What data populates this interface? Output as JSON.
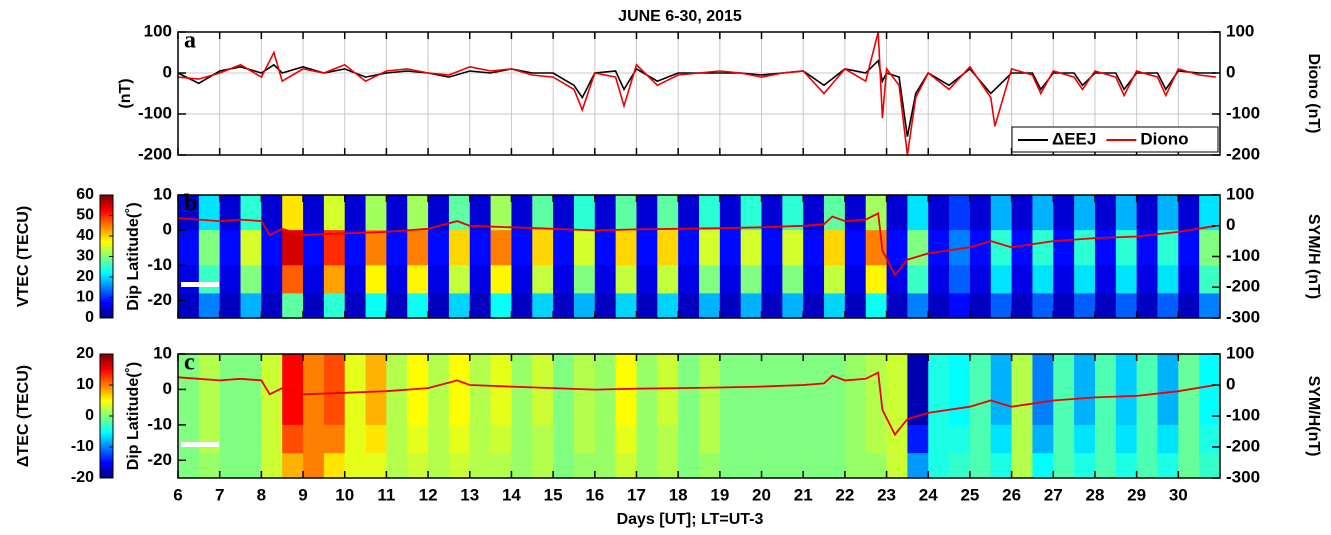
{
  "chart_data": [
    {
      "type": "line",
      "title": "JUNE 6-30, 2015",
      "panel_label": "a",
      "ylabel": "(nT)",
      "y2label": "Diono (nT)",
      "xlim": [
        6,
        31
      ],
      "ylim": [
        -200,
        100
      ],
      "yticks": [
        100,
        0,
        -100,
        -200
      ],
      "y2lim": [
        -200,
        100
      ],
      "y2ticks": [
        100,
        0,
        -100,
        -200
      ],
      "grid": true,
      "legend": "lower right",
      "x": [
        6,
        6.5,
        7,
        7.5,
        8,
        8.3,
        8.5,
        9,
        9.5,
        10,
        10.5,
        11,
        11.5,
        12,
        12.5,
        13,
        13.5,
        14,
        14.5,
        15,
        15.5,
        15.7,
        16,
        16.5,
        16.7,
        17,
        17.5,
        18,
        18.5,
        19,
        19.5,
        20,
        20.5,
        21,
        21.5,
        22,
        22.5,
        22.8,
        22.9,
        23,
        23.3,
        23.5,
        23.7,
        24,
        24.5,
        25,
        25.5,
        25.6,
        26,
        26.5,
        26.7,
        27,
        27.5,
        27.7,
        28,
        28.5,
        28.7,
        29,
        29.5,
        29.7,
        30,
        30.5,
        30.9
      ],
      "series": [
        {
          "name": "ΔEEJ",
          "color": "#000000",
          "values": [
            0,
            -25,
            5,
            15,
            0,
            20,
            0,
            15,
            0,
            10,
            -10,
            0,
            5,
            0,
            -10,
            5,
            0,
            10,
            0,
            0,
            -30,
            -60,
            0,
            5,
            -40,
            10,
            -20,
            0,
            0,
            0,
            0,
            -5,
            0,
            5,
            -30,
            10,
            0,
            30,
            -20,
            0,
            -10,
            -155,
            -50,
            0,
            -30,
            10,
            -50,
            -40,
            0,
            0,
            -40,
            0,
            0,
            -30,
            0,
            0,
            -40,
            0,
            0,
            -40,
            5,
            0,
            0
          ]
        },
        {
          "name": "Diono",
          "color": "#ee0000",
          "values": [
            -10,
            -15,
            0,
            20,
            -10,
            50,
            -20,
            10,
            0,
            20,
            -20,
            5,
            10,
            0,
            -5,
            15,
            5,
            10,
            -5,
            -10,
            -40,
            -90,
            0,
            -10,
            -80,
            20,
            -30,
            -5,
            0,
            5,
            0,
            -10,
            0,
            5,
            -50,
            10,
            -20,
            100,
            -110,
            10,
            -30,
            -200,
            -60,
            0,
            -40,
            15,
            -60,
            -130,
            10,
            -5,
            -50,
            5,
            -10,
            -40,
            5,
            -10,
            -55,
            5,
            -10,
            -55,
            10,
            -5,
            -10
          ]
        }
      ]
    },
    {
      "type": "heatmap",
      "panel_label": "b",
      "ylabel": "Dip Latitude(˚)",
      "y2label": "SYM/H (nT)",
      "xlim": [
        6,
        31
      ],
      "ylim": [
        -25,
        10
      ],
      "yticks": [
        10,
        0,
        -10,
        -20
      ],
      "y2lim": [
        -300,
        100
      ],
      "y2ticks": [
        100,
        0,
        -100,
        -200,
        -300
      ],
      "colormap": "jet",
      "colorbar": {
        "label": "VTEC (TECU)",
        "lim": [
          0,
          60
        ],
        "ticks": [
          60,
          50,
          40,
          30,
          20,
          10,
          0
        ]
      },
      "x_edges": [
        6,
        6.5,
        7,
        7.5,
        8,
        8.5,
        9,
        9.5,
        10,
        10.5,
        11,
        11.5,
        12,
        12.5,
        13,
        13.5,
        14,
        14.5,
        15,
        15.5,
        16,
        16.5,
        17,
        17.5,
        18,
        18.5,
        19,
        19.5,
        20,
        20.5,
        21,
        21.5,
        22,
        22.5,
        23,
        23.5,
        24,
        24.5,
        25,
        25.5,
        26,
        26.5,
        27,
        27.5,
        28,
        28.5,
        29,
        29.5,
        30,
        30.5,
        31
      ],
      "y_edges": [
        10,
        0,
        -10,
        -18,
        -25
      ],
      "z": [
        [
          5,
          21,
          5,
          25,
          5,
          39,
          5,
          35,
          5,
          32,
          5,
          32,
          5,
          28,
          5,
          32,
          5,
          28,
          5,
          25,
          5,
          28,
          5,
          28,
          5,
          25,
          5,
          25,
          5,
          25,
          5,
          28,
          5,
          32,
          5,
          21,
          5,
          11,
          5,
          18,
          5,
          18,
          5,
          18,
          5,
          18,
          5,
          18,
          5,
          21
        ],
        [
          8,
          30,
          8,
          35,
          8,
          55,
          8,
          50,
          8,
          45,
          8,
          45,
          8,
          40,
          8,
          45,
          8,
          40,
          8,
          35,
          8,
          40,
          8,
          40,
          8,
          35,
          8,
          35,
          8,
          35,
          8,
          40,
          8,
          45,
          8,
          30,
          8,
          15,
          8,
          25,
          8,
          25,
          8,
          25,
          8,
          25,
          8,
          25,
          8,
          30
        ],
        [
          6,
          26,
          6,
          30,
          6,
          47,
          6,
          43,
          6,
          38,
          6,
          38,
          6,
          34,
          6,
          38,
          6,
          34,
          6,
          30,
          6,
          34,
          6,
          34,
          6,
          30,
          6,
          30,
          6,
          30,
          6,
          34,
          6,
          38,
          6,
          26,
          6,
          13,
          6,
          21,
          6,
          21,
          6,
          21,
          6,
          21,
          6,
          21,
          6,
          26
        ],
        [
          4,
          15,
          4,
          18,
          4,
          28,
          4,
          25,
          4,
          23,
          4,
          23,
          4,
          20,
          4,
          23,
          4,
          20,
          4,
          18,
          4,
          20,
          4,
          20,
          4,
          18,
          4,
          18,
          4,
          18,
          4,
          20,
          4,
          23,
          4,
          15,
          4,
          8,
          4,
          13,
          4,
          13,
          4,
          13,
          4,
          13,
          4,
          13,
          4,
          15
        ]
      ],
      "series": [
        {
          "color": "#ee0000",
          "axis": "y2",
          "x": [
            6,
            6.5,
            7,
            7.5,
            8,
            8.2,
            8.5,
            9,
            10,
            11,
            12,
            12.7,
            13,
            14,
            15,
            16,
            17,
            18,
            19,
            20,
            21,
            21.5,
            21.7,
            22,
            22.5,
            22.8,
            22.9,
            23.2,
            23.5,
            24,
            25,
            25.5,
            26,
            27,
            28,
            29,
            30,
            30.9
          ],
          "values": [
            25,
            20,
            15,
            20,
            15,
            -30,
            -10,
            -30,
            -25,
            -20,
            -10,
            15,
            0,
            -5,
            -10,
            -15,
            -12,
            -10,
            -8,
            -5,
            0,
            5,
            30,
            15,
            20,
            40,
            -80,
            -160,
            -110,
            -90,
            -70,
            -50,
            -70,
            -50,
            -40,
            -35,
            -20,
            0
          ]
        }
      ]
    },
    {
      "type": "heatmap",
      "panel_label": "c",
      "ylabel": "Dip Latitude(˚)",
      "y2label": "SYM/H(nT)",
      "xlabel": "Days [UT]; LT=UT-3",
      "xlim": [
        6,
        31
      ],
      "xticks": [
        6,
        7,
        8,
        9,
        10,
        11,
        12,
        13,
        14,
        15,
        16,
        17,
        18,
        19,
        20,
        21,
        22,
        23,
        24,
        25,
        26,
        27,
        28,
        29,
        30
      ],
      "ylim": [
        -25,
        10
      ],
      "yticks": [
        10,
        0,
        -10,
        -20
      ],
      "y2lim": [
        -300,
        100
      ],
      "y2ticks": [
        100,
        0,
        -100,
        -200,
        -300
      ],
      "colormap": "jet",
      "colorbar": {
        "label": "ΔTEC (TECU)",
        "lim": [
          -20,
          20
        ],
        "ticks": [
          20,
          10,
          0,
          -10,
          -20
        ]
      },
      "x_edges": [
        6,
        6.5,
        7,
        7.5,
        8,
        8.5,
        9,
        9.5,
        10,
        10.5,
        11,
        11.5,
        12,
        12.5,
        13,
        13.5,
        14,
        14.5,
        15,
        15.5,
        16,
        16.5,
        17,
        17.5,
        18,
        18.5,
        19,
        19.5,
        20,
        20.5,
        21,
        21.5,
        22,
        22.5,
        23,
        23.5,
        24,
        24.5,
        25,
        25.5,
        26,
        26.5,
        27,
        27.5,
        28,
        28.5,
        29,
        29.5,
        30,
        30.5,
        31
      ],
      "y_edges": [
        10,
        0,
        -10,
        -18,
        -25
      ],
      "z": [
        [
          0,
          2,
          0,
          0,
          3,
          15,
          10,
          12,
          4,
          8,
          2,
          5,
          2,
          5,
          2,
          4,
          1,
          3,
          0,
          2,
          1,
          5,
          1,
          3,
          0,
          2,
          0,
          0,
          0,
          0,
          0,
          0,
          1,
          2,
          3,
          -18,
          -4,
          -5,
          -2,
          -8,
          2,
          -10,
          -2,
          -8,
          -2,
          -7,
          -2,
          -8,
          -1,
          -5
        ],
        [
          0,
          2,
          0,
          0,
          3,
          15,
          10,
          12,
          4,
          8,
          2,
          5,
          2,
          5,
          2,
          4,
          1,
          3,
          0,
          2,
          1,
          5,
          1,
          3,
          0,
          2,
          0,
          0,
          0,
          0,
          0,
          0,
          1,
          2,
          3,
          -18,
          -4,
          -5,
          -2,
          -8,
          2,
          -10,
          -2,
          -8,
          -2,
          -7,
          -2,
          -8,
          -1,
          -5
        ],
        [
          0,
          2,
          0,
          0,
          3,
          12,
          10,
          10,
          4,
          6,
          2,
          4,
          2,
          4,
          2,
          3,
          1,
          2,
          0,
          2,
          1,
          4,
          1,
          2,
          0,
          2,
          0,
          0,
          0,
          0,
          0,
          0,
          1,
          2,
          3,
          -14,
          -4,
          -4,
          -2,
          -6,
          2,
          -8,
          -2,
          -6,
          -2,
          -6,
          -2,
          -6,
          -1,
          -4
        ],
        [
          0,
          1,
          0,
          0,
          3,
          8,
          10,
          6,
          4,
          4,
          2,
          3,
          2,
          3,
          2,
          2,
          1,
          2,
          0,
          1,
          1,
          3,
          1,
          2,
          0,
          1,
          0,
          0,
          0,
          0,
          0,
          0,
          1,
          1,
          3,
          -9,
          -4,
          -3,
          -2,
          -4,
          2,
          -5,
          -2,
          -4,
          -2,
          -4,
          -2,
          -4,
          -1,
          -3
        ]
      ],
      "series": [
        {
          "color": "#ee0000",
          "axis": "y2",
          "x": [
            6,
            6.5,
            7,
            7.5,
            8,
            8.2,
            8.5,
            9,
            10,
            11,
            12,
            12.7,
            13,
            14,
            15,
            16,
            17,
            18,
            19,
            20,
            21,
            21.5,
            21.7,
            22,
            22.5,
            22.8,
            22.9,
            23.2,
            23.5,
            24,
            25,
            25.5,
            26,
            27,
            28,
            29,
            30,
            30.9
          ],
          "values": [
            25,
            20,
            15,
            20,
            15,
            -30,
            -10,
            -30,
            -25,
            -20,
            -10,
            15,
            0,
            -5,
            -10,
            -15,
            -12,
            -10,
            -8,
            -5,
            0,
            5,
            30,
            15,
            20,
            40,
            -80,
            -160,
            -110,
            -90,
            -70,
            -50,
            -70,
            -50,
            -40,
            -35,
            -20,
            0
          ]
        }
      ]
    }
  ]
}
